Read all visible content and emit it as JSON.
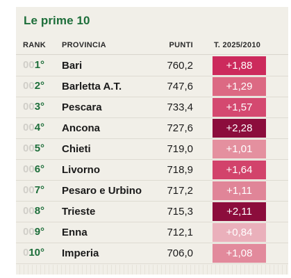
{
  "title": "Le prime 10",
  "headers": {
    "rank": "RANK",
    "provincia": "PROVINCIA",
    "punti": "PUNTI",
    "change": "T. 2025/2010"
  },
  "rows": [
    {
      "pad": "00",
      "rank": "1°",
      "provincia": "Bari",
      "punti": "760,2",
      "change": "+1,88",
      "color": "#cc2a5c"
    },
    {
      "pad": "00",
      "rank": "2°",
      "provincia": "Barletta A.T.",
      "punti": "747,6",
      "change": "+1,29",
      "color": "#dc6983"
    },
    {
      "pad": "00",
      "rank": "3°",
      "provincia": "Pescara",
      "punti": "733,4",
      "change": "+1,57",
      "color": "#d44970"
    },
    {
      "pad": "00",
      "rank": "4°",
      "provincia": "Ancona",
      "punti": "727,6",
      "change": "+2,28",
      "color": "#8c0d3c"
    },
    {
      "pad": "00",
      "rank": "5°",
      "provincia": "Chieti",
      "punti": "719,0",
      "change": "+1,01",
      "color": "#e4909f"
    },
    {
      "pad": "00",
      "rank": "6°",
      "provincia": "Livorno",
      "punti": "718,9",
      "change": "+1,64",
      "color": "#d2436b"
    },
    {
      "pad": "00",
      "rank": "7°",
      "provincia": "Pesaro e Urbino",
      "punti": "717,2",
      "change": "+1,11",
      "color": "#e08598"
    },
    {
      "pad": "00",
      "rank": "8°",
      "provincia": "Trieste",
      "punti": "715,3",
      "change": "+2,11",
      "color": "#8c0d3c"
    },
    {
      "pad": "00",
      "rank": "9°",
      "provincia": "Enna",
      "punti": "712,1",
      "change": "+0,84",
      "color": "#eab0bb"
    },
    {
      "pad": "0",
      "rank": "10°",
      "provincia": "Imperia",
      "punti": "706,0",
      "change": "+1,08",
      "color": "#e28a9c"
    }
  ]
}
